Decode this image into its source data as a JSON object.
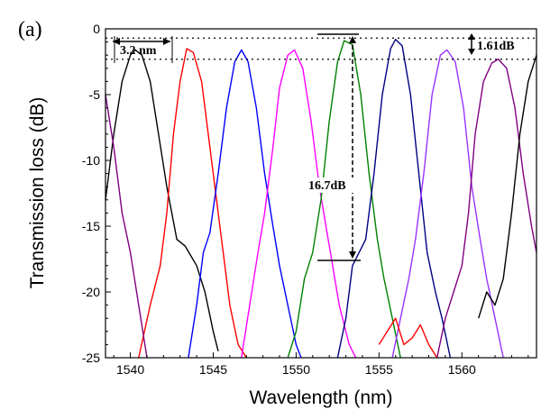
{
  "chart_data": {
    "type": "line",
    "panel_label": "(a)",
    "xlabel": "Wavelength (nm)",
    "ylabel": "Transmission loss (dB)",
    "xlim": [
      1538.5,
      1564.5
    ],
    "ylim": [
      -25,
      0
    ],
    "xticks": [
      1540,
      1545,
      1550,
      1555,
      1560
    ],
    "yticks": [
      0,
      -5,
      -10,
      -15,
      -20,
      -25
    ],
    "grid": false,
    "legend": "none",
    "reference_lines_db": [
      -0.7,
      -2.31
    ],
    "annotations": {
      "spacing": "3.2 nm",
      "ripple": "1.61dB",
      "extinction": "16.7dB"
    },
    "series": [
      {
        "color": "#000000",
        "values": [
          [
            1538.5,
            -13
          ],
          [
            1539.0,
            -8
          ],
          [
            1539.5,
            -4
          ],
          [
            1540.0,
            -2.0
          ],
          [
            1540.3,
            -1.6
          ],
          [
            1540.7,
            -2.0
          ],
          [
            1541.2,
            -4
          ],
          [
            1541.7,
            -8
          ],
          [
            1542.2,
            -12
          ],
          [
            1542.8,
            -16
          ],
          [
            1543.3,
            -16.5
          ],
          [
            1544.0,
            -18
          ],
          [
            1544.5,
            -20
          ],
          [
            1545.0,
            -23
          ],
          [
            1545.3,
            -24.5
          ]
        ]
      },
      {
        "color": "#ff0000",
        "values": [
          [
            1540.5,
            -25
          ],
          [
            1541.2,
            -21
          ],
          [
            1541.8,
            -18
          ],
          [
            1542.2,
            -14
          ],
          [
            1542.6,
            -8
          ],
          [
            1543.0,
            -4
          ],
          [
            1543.4,
            -1.5
          ],
          [
            1543.8,
            -1.8
          ],
          [
            1544.3,
            -4
          ],
          [
            1544.8,
            -9
          ],
          [
            1545.3,
            -14
          ],
          [
            1545.7,
            -18
          ],
          [
            1546.0,
            -21
          ],
          [
            1546.5,
            -24
          ],
          [
            1547.0,
            -25
          ]
        ]
      },
      {
        "color": "#0000ff",
        "values": [
          [
            1543.5,
            -25
          ],
          [
            1544.0,
            -21
          ],
          [
            1544.4,
            -17
          ],
          [
            1544.8,
            -15.5
          ],
          [
            1545.3,
            -11
          ],
          [
            1545.8,
            -6
          ],
          [
            1546.3,
            -2.5
          ],
          [
            1546.7,
            -1.6
          ],
          [
            1547.1,
            -2.5
          ],
          [
            1547.6,
            -6
          ],
          [
            1548.1,
            -11
          ],
          [
            1548.6,
            -15
          ],
          [
            1549.0,
            -18
          ],
          [
            1549.5,
            -21
          ],
          [
            1550.0,
            -24
          ],
          [
            1550.3,
            -25
          ]
        ]
      },
      {
        "color": "#ff00ff",
        "values": [
          [
            1546.7,
            -25
          ],
          [
            1547.2,
            -21
          ],
          [
            1547.7,
            -17
          ],
          [
            1548.1,
            -14
          ],
          [
            1548.6,
            -9
          ],
          [
            1549.0,
            -4.5
          ],
          [
            1549.5,
            -2.0
          ],
          [
            1549.9,
            -1.6
          ],
          [
            1550.4,
            -3
          ],
          [
            1550.9,
            -7
          ],
          [
            1551.4,
            -12
          ],
          [
            1551.8,
            -15
          ],
          [
            1552.2,
            -18
          ],
          [
            1552.6,
            -21
          ],
          [
            1553.2,
            -24
          ],
          [
            1553.6,
            -25
          ]
        ]
      },
      {
        "color": "#008000",
        "values": [
          [
            1549.5,
            -25
          ],
          [
            1550.0,
            -23
          ],
          [
            1550.5,
            -19
          ],
          [
            1551.0,
            -17
          ],
          [
            1551.5,
            -13
          ],
          [
            1552.0,
            -7
          ],
          [
            1552.5,
            -2.5
          ],
          [
            1552.9,
            -0.9
          ],
          [
            1553.4,
            -1.2
          ],
          [
            1553.9,
            -5
          ],
          [
            1554.4,
            -11
          ],
          [
            1554.9,
            -16
          ],
          [
            1555.3,
            -19
          ],
          [
            1555.8,
            -22
          ],
          [
            1556.3,
            -25
          ]
        ]
      },
      {
        "color": "#000080",
        "values": [
          [
            1552.5,
            -25
          ],
          [
            1553.0,
            -22
          ],
          [
            1553.4,
            -18
          ],
          [
            1553.8,
            -17
          ],
          [
            1554.2,
            -16
          ],
          [
            1554.7,
            -11
          ],
          [
            1555.2,
            -5
          ],
          [
            1555.7,
            -1.5
          ],
          [
            1556.0,
            -0.8
          ],
          [
            1556.4,
            -1.3
          ],
          [
            1556.9,
            -5
          ],
          [
            1557.4,
            -11
          ],
          [
            1557.9,
            -17
          ],
          [
            1558.4,
            -20
          ],
          [
            1558.8,
            -22
          ],
          [
            1559.3,
            -25
          ]
        ]
      },
      {
        "color": "#9933ff",
        "values": [
          [
            1555.8,
            -25
          ],
          [
            1556.3,
            -22
          ],
          [
            1556.8,
            -19
          ],
          [
            1557.2,
            -16
          ],
          [
            1557.7,
            -11
          ],
          [
            1558.2,
            -5
          ],
          [
            1558.7,
            -2.0
          ],
          [
            1559.1,
            -1.6
          ],
          [
            1559.6,
            -2.5
          ],
          [
            1560.1,
            -6
          ],
          [
            1560.6,
            -12
          ],
          [
            1561.1,
            -16
          ],
          [
            1561.5,
            -19
          ],
          [
            1562.0,
            -22
          ],
          [
            1562.5,
            -25
          ]
        ]
      },
      {
        "color": "#800080",
        "values": [
          [
            1538.5,
            -5
          ],
          [
            1539.0,
            -9
          ],
          [
            1539.5,
            -14
          ],
          [
            1540.0,
            -17
          ],
          [
            1540.5,
            -21
          ],
          [
            1541.0,
            -25
          ]
        ]
      },
      {
        "color": "#800080",
        "values": [
          [
            1558.5,
            -25
          ],
          [
            1559.0,
            -22
          ],
          [
            1559.5,
            -20
          ],
          [
            1560.0,
            -18
          ],
          [
            1560.4,
            -14
          ],
          [
            1560.8,
            -8
          ],
          [
            1561.3,
            -4
          ],
          [
            1561.8,
            -2.6
          ],
          [
            1562.2,
            -2.3
          ],
          [
            1562.7,
            -3
          ],
          [
            1563.2,
            -6
          ],
          [
            1563.7,
            -11
          ],
          [
            1564.2,
            -15
          ],
          [
            1564.5,
            -17
          ]
        ]
      },
      {
        "color": "#000000",
        "values": [
          [
            1561.0,
            -22
          ],
          [
            1561.5,
            -20
          ],
          [
            1562.0,
            -21
          ],
          [
            1562.5,
            -19
          ],
          [
            1563.0,
            -14
          ],
          [
            1563.5,
            -8
          ],
          [
            1564.0,
            -4
          ],
          [
            1564.5,
            -2
          ]
        ]
      },
      {
        "color": "#ff0000",
        "values": [
          [
            1555.0,
            -24
          ],
          [
            1555.5,
            -23
          ],
          [
            1556.0,
            -22
          ],
          [
            1556.5,
            -24
          ],
          [
            1557.0,
            -23.5
          ],
          [
            1557.5,
            -22.5
          ],
          [
            1558.0,
            -24
          ],
          [
            1558.5,
            -25
          ]
        ]
      }
    ]
  }
}
